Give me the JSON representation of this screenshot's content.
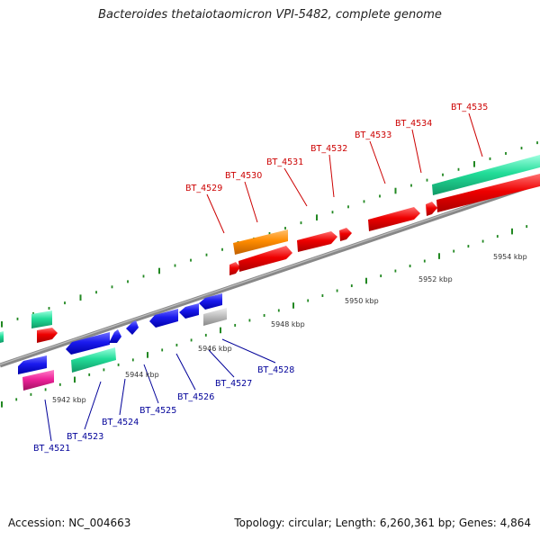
{
  "title": "Bacteroides thetaiotaomicron VPI-5482, complete genome",
  "footer": {
    "accession": "Accession: NC_004663",
    "summary": "Topology: circular; Length: 6,260,361 bp; Genes: 4,864"
  },
  "scale_labels": [
    "5942 kbp",
    "5944 kbp",
    "5946 kbp",
    "5948 kbp",
    "5950 kbp",
    "5952 kbp",
    "5954 kbp"
  ],
  "genes_top": [
    "BT_4529",
    "BT_4530",
    "BT_4531",
    "BT_4532",
    "BT_4533",
    "BT_4534",
    "BT_4535"
  ],
  "genes_bottom": [
    "BT_4521",
    "BT_4523",
    "BT_4524",
    "BT_4525",
    "BT_4526",
    "BT_4527",
    "BT_4528"
  ],
  "colors": {
    "forward": "#ee0000",
    "reverse": "#1a1aee",
    "rna": "#22dd99",
    "orange": "#ff8c00",
    "magenta": "#ee2299",
    "grey": "#bbbbbb",
    "tick": "#228822",
    "backbone": "#888888"
  }
}
